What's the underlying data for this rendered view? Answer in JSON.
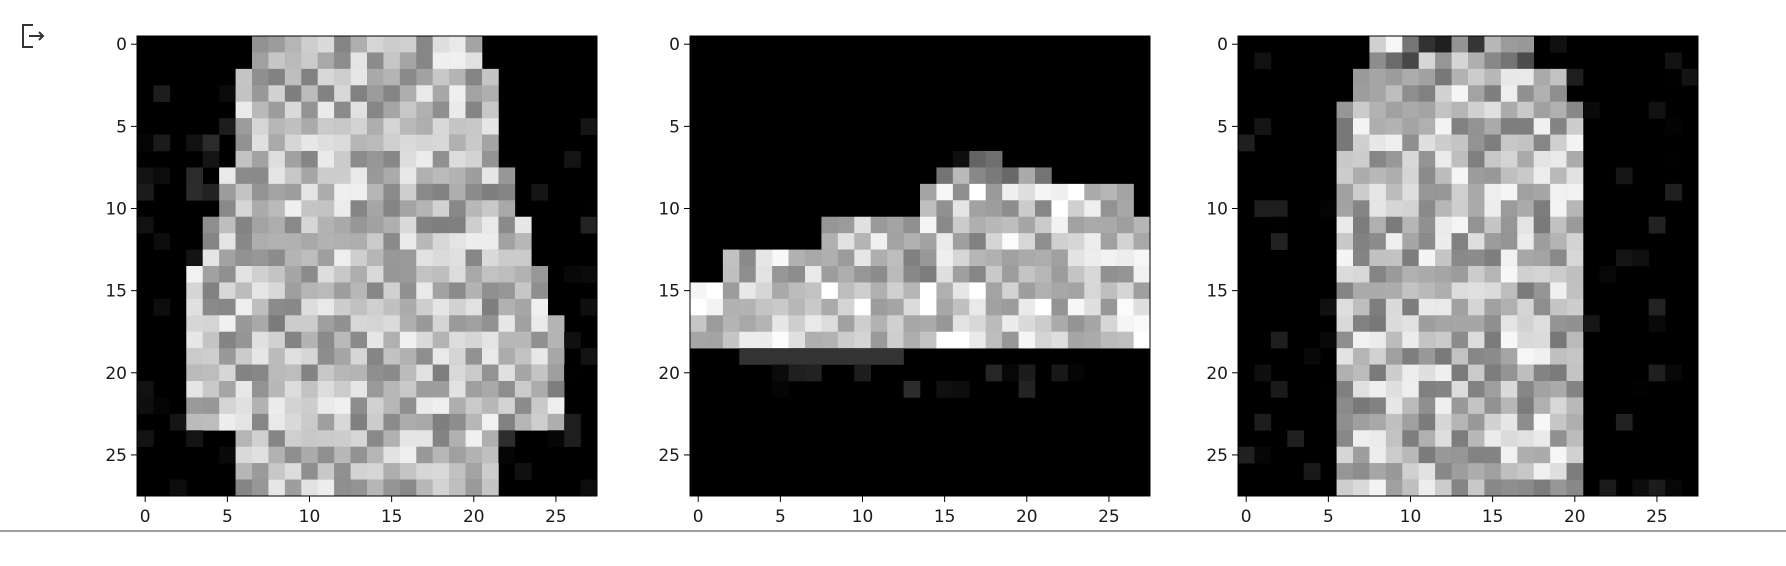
{
  "output_icon": "output-arrow-icon",
  "chart_data": [
    {
      "type": "heatmap",
      "colormap": "gray",
      "shape": [
        28,
        28
      ],
      "xticks": [
        0,
        5,
        10,
        15,
        20,
        25
      ],
      "yticks": [
        0,
        5,
        10,
        15,
        20,
        25
      ],
      "xlim": [
        -0.5,
        27.5
      ],
      "ylim": [
        27.5,
        -0.5
      ],
      "item": "shirt"
    },
    {
      "type": "heatmap",
      "colormap": "gray",
      "shape": [
        28,
        28
      ],
      "xticks": [
        0,
        5,
        10,
        15,
        20,
        25
      ],
      "yticks": [
        0,
        5,
        10,
        15,
        20,
        25
      ],
      "xlim": [
        -0.5,
        27.5
      ],
      "ylim": [
        27.5,
        -0.5
      ],
      "item": "sneaker"
    },
    {
      "type": "heatmap",
      "colormap": "gray",
      "shape": [
        28,
        28
      ],
      "xticks": [
        0,
        5,
        10,
        15,
        20,
        25
      ],
      "yticks": [
        0,
        5,
        10,
        15,
        20,
        25
      ],
      "xlim": [
        -0.5,
        27.5
      ],
      "ylim": [
        27.5,
        -0.5
      ],
      "item": "dress"
    }
  ]
}
